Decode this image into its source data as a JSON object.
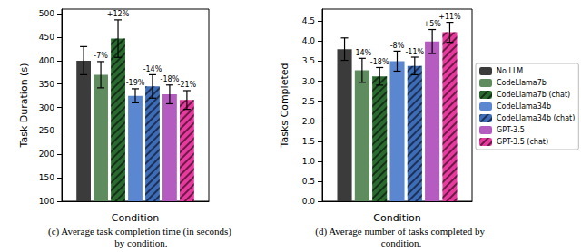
{
  "chart_data": [
    {
      "type": "bar",
      "title": "(c) Average task completion time (in seconds) by condition.",
      "x_label": "Condition",
      "y_label": "Task Duration (s)",
      "categories": [
        null
      ],
      "ylim": [
        100,
        510
      ],
      "yticks": [
        100,
        150,
        200,
        250,
        300,
        350,
        400,
        450,
        500
      ],
      "grid": false,
      "series": [
        {
          "name": "No LLM",
          "color": "#3b3b3b",
          "values": [
            400
          ],
          "error": [
            30
          ]
        },
        {
          "name": "CodeLlama7b",
          "color": "#5e8c5e",
          "values": [
            370
          ],
          "error": [
            28
          ],
          "annotation": [
            "-7%"
          ]
        },
        {
          "name": "CodeLlama7b (chat)",
          "color": "#2a6a30",
          "values": [
            447
          ],
          "error": [
            40
          ],
          "annotation": [
            "+12%"
          ],
          "line_style": "hatched"
        },
        {
          "name": "CodeLlama34b",
          "color": "#5b87d0",
          "values": [
            325
          ],
          "error": [
            15
          ],
          "annotation": [
            "-19%"
          ]
        },
        {
          "name": "CodeLlama34b (chat)",
          "color": "#3d6cb8",
          "values": [
            345
          ],
          "error": [
            25
          ],
          "annotation": [
            "-14%"
          ],
          "line_style": "hatched"
        },
        {
          "name": "GPT-3.5",
          "color": "#b45cbf",
          "values": [
            328
          ],
          "error": [
            20
          ],
          "annotation": [
            "-18%"
          ]
        },
        {
          "name": "GPT-3.5 (chat)",
          "color": "#e8399e",
          "values": [
            316
          ],
          "error": [
            20
          ],
          "annotation": [
            "-21%"
          ],
          "line_style": "hatched"
        }
      ]
    },
    {
      "type": "bar",
      "title": "(d) Average number of tasks completed by condition.",
      "x_label": "Condition",
      "y_label": "Tasks Completed",
      "categories": [
        null
      ],
      "ylim": [
        0,
        4.8
      ],
      "yticks": [
        {
          "value": 0,
          "label": "0.0"
        },
        {
          "value": 0.5,
          "label": "0.5"
        },
        {
          "value": 1,
          "label": "1.0"
        },
        {
          "value": 1.5,
          "label": "1.5"
        },
        {
          "value": 2,
          "label": "2.0"
        },
        {
          "value": 2.5,
          "label": "2.5"
        },
        {
          "value": 3,
          "label": "3.0"
        },
        {
          "value": 3.5,
          "label": "3.5"
        },
        {
          "value": 4,
          "label": "4.0"
        },
        {
          "value": 4.5,
          "label": "4.5"
        }
      ],
      "grid": false,
      "legend": "right",
      "series": [
        {
          "name": "No LLM",
          "color": "#3b3b3b",
          "values": [
            3.8
          ],
          "error": [
            0.28
          ]
        },
        {
          "name": "CodeLlama7b",
          "color": "#5e8c5e",
          "values": [
            3.27
          ],
          "error": [
            0.3
          ],
          "annotation": [
            "-14%"
          ]
        },
        {
          "name": "CodeLlama7b (chat)",
          "color": "#2a6a30",
          "values": [
            3.12
          ],
          "error": [
            0.22
          ],
          "annotation": [
            "-18%"
          ],
          "line_style": "hatched"
        },
        {
          "name": "CodeLlama34b",
          "color": "#5b87d0",
          "values": [
            3.5
          ],
          "error": [
            0.25
          ],
          "annotation": [
            "-8%"
          ]
        },
        {
          "name": "CodeLlama34b (chat)",
          "color": "#3d6cb8",
          "values": [
            3.38
          ],
          "error": [
            0.22
          ],
          "annotation": [
            "-11%"
          ],
          "line_style": "hatched"
        },
        {
          "name": "GPT-3.5",
          "color": "#b45cbf",
          "values": [
            3.99
          ],
          "error": [
            0.3
          ],
          "annotation": [
            "+5%"
          ]
        },
        {
          "name": "GPT-3.5 (chat)",
          "color": "#e8399e",
          "values": [
            4.22
          ],
          "error": [
            0.25
          ],
          "annotation": [
            "+11%"
          ],
          "line_style": "hatched"
        }
      ]
    }
  ]
}
